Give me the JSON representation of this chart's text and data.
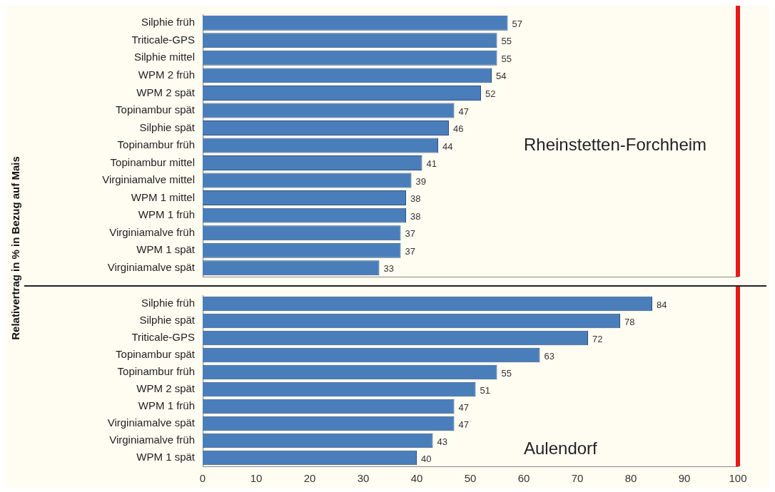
{
  "chart_data": [
    {
      "type": "bar",
      "orientation": "horizontal",
      "ylabel": "Relativertrag in % in Bezug auf Mais",
      "annotations": [
        "Rheinstetten-Forchheim"
      ],
      "categories": [
        "Silphie früh",
        "Triticale-GPS",
        "Silphie mittel",
        "WPM 2 früh",
        "WPM 2 spät",
        "Topinambur spät",
        "Silphie spät",
        "Topinambur früh",
        "Topinambur mittel",
        "Virginiamalve mittel",
        "WPM 1 mittel",
        "WPM 1 früh",
        "Virginiamalve früh",
        "WPM 1 spät",
        "Virginiamalve spät"
      ],
      "values": [
        57,
        55,
        55,
        54,
        52,
        47,
        46,
        44,
        41,
        39,
        38,
        38,
        37,
        37,
        33
      ],
      "color": "#4a7ebb",
      "data_labels": true,
      "grid": false,
      "legend": false,
      "tick_labels": "y",
      "xlim": [
        0,
        100
      ],
      "xticks": [
        0,
        10,
        20,
        30,
        40,
        50,
        60,
        70,
        80,
        90,
        100
      ],
      "ref_lines": [
        {
          "axis": "x",
          "value": 100,
          "color": "#e8191a"
        }
      ]
    },
    {
      "type": "bar",
      "orientation": "horizontal",
      "annotations": [
        "Aulendorf"
      ],
      "categories": [
        "Silphie früh",
        "Silphie spät",
        "Triticale-GPS",
        "Topinambur spät",
        "Topinambur früh",
        "WPM 2 spät",
        "WPM 1 früh",
        "Virginiamalve spät",
        "Virginiamalve früh",
        "WPM 1 spät"
      ],
      "values": [
        84,
        78,
        72,
        63,
        55,
        51,
        47,
        47,
        43,
        40
      ],
      "color": "#4a7ebb",
      "data_labels": true,
      "grid": false,
      "legend": false,
      "xlim": [
        0,
        100
      ],
      "xticks": [
        0,
        10,
        20,
        30,
        40,
        50,
        60,
        70,
        80,
        90,
        100
      ],
      "ref_lines": [
        {
          "axis": "x",
          "value": 100,
          "color": "#e8191a"
        }
      ]
    }
  ]
}
